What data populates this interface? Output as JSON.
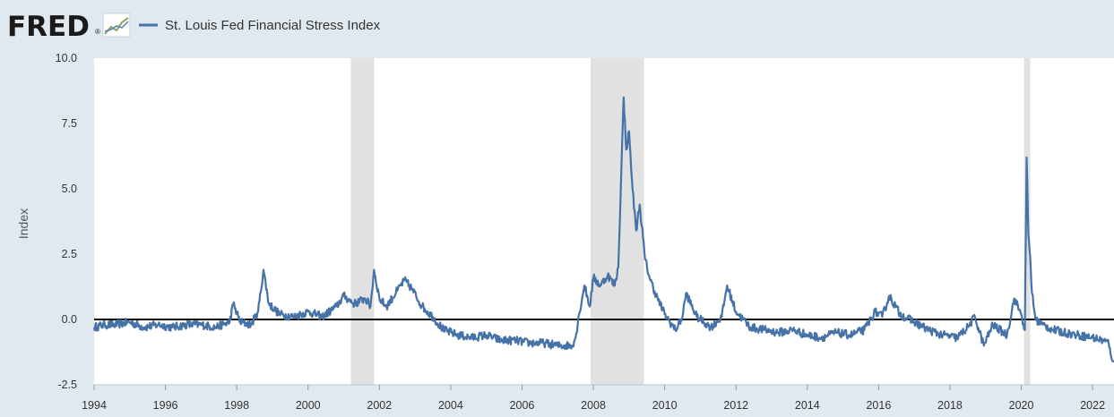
{
  "header": {
    "logo_text": "FRED",
    "logo_registered": "®",
    "logo_icon": "line-chart-icon"
  },
  "colors": {
    "background": "#e1e9f0",
    "plot_background": "#ffffff",
    "series": "#4572a7",
    "recession": "#e1e1e1",
    "zero_line": "#000000",
    "logo_line_green": "#8aa85c",
    "logo_line_blue": "#5b82b0"
  },
  "chart_data": {
    "type": "line",
    "title": "St. Louis Fed Financial Stress Index",
    "legend": [
      "St. Louis Fed Financial Stress Index"
    ],
    "legend_position": "top-left",
    "xlabel": "",
    "ylabel": "Index",
    "xlim": [
      1994,
      2022.6
    ],
    "ylim": [
      -2.5,
      10.0
    ],
    "x_ticks": [
      1994,
      1996,
      1998,
      2000,
      2002,
      2004,
      2006,
      2008,
      2010,
      2012,
      2014,
      2016,
      2018,
      2020,
      2022
    ],
    "y_ticks": [
      -2.5,
      0,
      2.5,
      5,
      7.5,
      10
    ],
    "y_tick_labels": [
      "-2.5",
      "0.0",
      "2.5",
      "5.0",
      "7.5",
      "10.0"
    ],
    "grid": false,
    "zero_line": 0,
    "recessions": [
      [
        2001.2,
        2001.85
      ],
      [
        2007.92,
        2009.42
      ],
      [
        2020.08,
        2020.25
      ]
    ],
    "series": [
      {
        "name": "St. Louis Fed Financial Stress Index",
        "x": [
          1994.0,
          1994.3,
          1994.6,
          1995.0,
          1995.4,
          1995.8,
          1996.2,
          1996.6,
          1997.0,
          1997.4,
          1997.8,
          1997.9,
          1998.1,
          1998.4,
          1998.6,
          1998.75,
          1998.9,
          1999.2,
          1999.6,
          2000.0,
          2000.4,
          2000.8,
          2001.0,
          2001.3,
          2001.6,
          2001.75,
          2001.85,
          2002.0,
          2002.2,
          2002.5,
          2002.7,
          2002.9,
          2003.2,
          2003.5,
          2003.8,
          2004.2,
          2004.6,
          2005.0,
          2005.4,
          2005.8,
          2006.2,
          2006.6,
          2007.0,
          2007.4,
          2007.5,
          2007.6,
          2007.75,
          2007.9,
          2008.0,
          2008.2,
          2008.4,
          2008.6,
          2008.7,
          2008.78,
          2008.85,
          2008.92,
          2009.0,
          2009.1,
          2009.2,
          2009.3,
          2009.45,
          2009.6,
          2009.8,
          2010.0,
          2010.3,
          2010.5,
          2010.6,
          2010.9,
          2011.3,
          2011.6,
          2011.75,
          2012.0,
          2012.4,
          2012.8,
          2013.2,
          2013.6,
          2014.0,
          2014.4,
          2014.8,
          2015.2,
          2015.6,
          2015.9,
          2016.1,
          2016.3,
          2016.6,
          2017.0,
          2017.4,
          2017.8,
          2018.2,
          2018.5,
          2018.7,
          2018.95,
          2019.2,
          2019.6,
          2019.8,
          2020.0,
          2020.1,
          2020.15,
          2020.2,
          2020.25,
          2020.3,
          2020.4,
          2020.6,
          2020.9,
          2021.2,
          2021.6,
          2022.0,
          2022.3,
          2022.45,
          2022.5,
          2022.6
        ],
        "values": [
          -0.3,
          -0.2,
          -0.2,
          -0.1,
          -0.3,
          -0.2,
          -0.3,
          -0.2,
          -0.2,
          -0.3,
          -0.1,
          0.6,
          -0.1,
          -0.2,
          0.3,
          1.9,
          0.6,
          0.2,
          0.1,
          0.3,
          0.1,
          0.5,
          0.9,
          0.6,
          0.8,
          0.5,
          1.9,
          0.8,
          0.5,
          1.1,
          1.5,
          1.2,
          0.5,
          0.1,
          -0.4,
          -0.6,
          -0.7,
          -0.6,
          -0.8,
          -0.8,
          -0.9,
          -0.9,
          -1.0,
          -1.0,
          -0.7,
          0.2,
          1.3,
          0.5,
          1.6,
          1.3,
          1.7,
          1.3,
          2.0,
          5.5,
          8.5,
          6.5,
          7.2,
          5.0,
          3.4,
          4.4,
          2.3,
          1.5,
          0.8,
          0.2,
          -0.4,
          0.1,
          1.0,
          0.1,
          -0.3,
          0.1,
          1.3,
          0.3,
          -0.3,
          -0.4,
          -0.5,
          -0.4,
          -0.6,
          -0.7,
          -0.5,
          -0.6,
          -0.4,
          0.3,
          0.1,
          0.9,
          0.2,
          -0.1,
          -0.4,
          -0.6,
          -0.7,
          -0.3,
          0.1,
          -1.0,
          -0.2,
          -0.6,
          0.8,
          0.2,
          -0.4,
          6.2,
          3.2,
          2.4,
          1.0,
          0.0,
          -0.2,
          -0.4,
          -0.5,
          -0.6,
          -0.7,
          -0.8,
          -0.9,
          -1.3,
          -1.6
        ]
      }
    ]
  }
}
